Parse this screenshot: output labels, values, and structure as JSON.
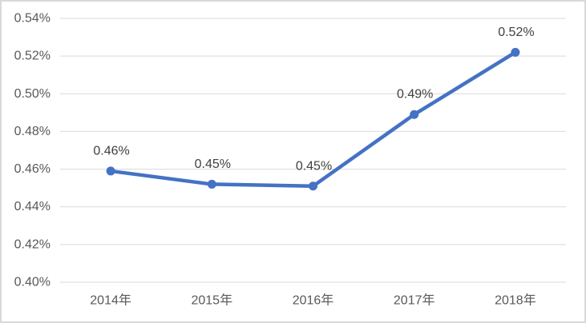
{
  "chart": {
    "colors": {
      "line": "#4472C4",
      "marker": "#4472C4",
      "gridline": "#D9D9D9",
      "tick_label": "#595959",
      "data_label": "#404040",
      "border": "#D9D9D9",
      "background": "#FFFFFF"
    }
  },
  "chart_data": {
    "type": "line",
    "title": "",
    "xlabel": "",
    "ylabel": "",
    "categories": [
      "2014年",
      "2015年",
      "2016年",
      "2017年",
      "2018年"
    ],
    "series": [
      {
        "name": "",
        "values": [
          0.459,
          0.452,
          0.451,
          0.489,
          0.522
        ],
        "data_labels": [
          "0.46%",
          "0.45%",
          "0.45%",
          "0.49%",
          "0.52%"
        ]
      }
    ],
    "y_axis": {
      "min": 0.4,
      "max": 0.54,
      "step": 0.02,
      "tick_labels": [
        "0.40%",
        "0.42%",
        "0.44%",
        "0.46%",
        "0.48%",
        "0.50%",
        "0.52%",
        "0.54%"
      ],
      "unit": "percent"
    },
    "grid": true,
    "legend": "none",
    "marker": "circle"
  }
}
